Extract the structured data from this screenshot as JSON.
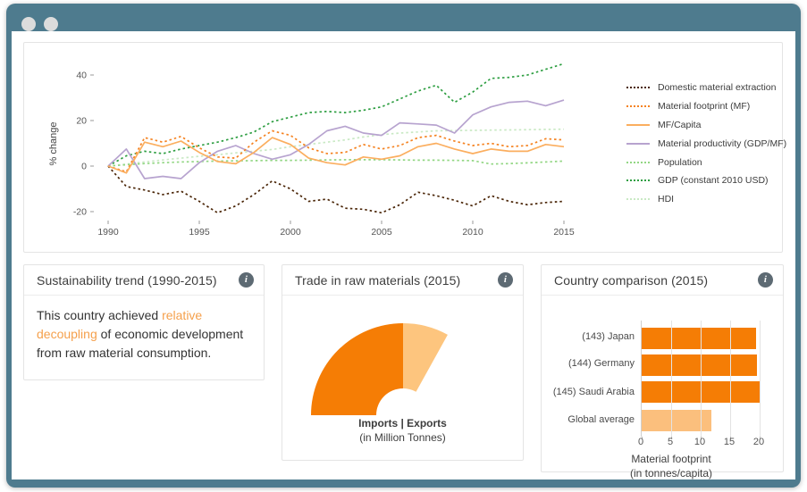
{
  "window": {
    "frame_color": "#4e7b8e"
  },
  "icons": {
    "info": "i"
  },
  "panels": {
    "trend": {
      "title": "Sustainability trend (1990-2015)",
      "text_before": "This country achieved ",
      "highlight": "relative decoupling",
      "text_after": " of economic development from raw material consumption."
    },
    "trade": {
      "title": "Trade in raw materials (2015)",
      "caption_line1": "Imports | Exports",
      "caption_line2": "(in Million Tonnes)"
    },
    "comparison": {
      "title": "Country comparison (2015)"
    }
  },
  "chart_data": [
    {
      "type": "line",
      "ylabel": "% change",
      "y_ticks": [
        40,
        20,
        0,
        -20
      ],
      "ylim": [
        -25,
        47
      ],
      "x_ticks": [
        1990,
        1995,
        2000,
        2005,
        2010,
        2015
      ],
      "years": [
        1990,
        1991,
        1992,
        1993,
        1994,
        1995,
        1996,
        1997,
        1998,
        1999,
        2000,
        2001,
        2002,
        2003,
        2004,
        2005,
        2006,
        2007,
        2008,
        2009,
        2010,
        2011,
        2012,
        2013,
        2014,
        2015
      ],
      "legend_position": "right",
      "grid": false,
      "series": [
        {
          "name": "Domestic material extraction",
          "color": "#4a2507",
          "dash": true,
          "values": [
            0,
            -9,
            -10.5,
            -12.5,
            -11,
            -15.5,
            -20.5,
            -17.5,
            -12.5,
            -6.5,
            -10,
            -15.5,
            -14.5,
            -18.5,
            -19,
            -20.5,
            -17,
            -11.5,
            -13,
            -15,
            -17.5,
            -13,
            -15.5,
            -17,
            -16,
            -15.5
          ]
        },
        {
          "name": "Material footprint (MF)",
          "color": "#f58220",
          "dash": true,
          "values": [
            0,
            -2.5,
            12.5,
            10.5,
            13,
            8,
            4,
            3.5,
            10.5,
            15.5,
            13.5,
            8,
            5.5,
            6,
            9.5,
            7.5,
            9,
            12.5,
            13.5,
            11,
            9,
            10,
            8.5,
            9,
            12,
            11.5
          ]
        },
        {
          "name": "MF/Capita",
          "color": "#fbae5f",
          "dash": false,
          "values": [
            0,
            -3,
            10.5,
            8.5,
            11,
            6,
            2,
            1,
            6,
            12.5,
            9.5,
            3.5,
            1.5,
            0.5,
            4,
            3,
            4.5,
            8.5,
            10,
            7.5,
            5.5,
            7.5,
            6.5,
            6.5,
            9.5,
            8.5
          ]
        },
        {
          "name": "Material productivity (GDP/MF)",
          "color": "#b7a3cf",
          "dash": false,
          "values": [
            0,
            7.5,
            -5.5,
            -4.5,
            -5.5,
            1.5,
            6.5,
            9,
            5.5,
            3,
            5,
            9.5,
            15.5,
            17.5,
            14.5,
            13.5,
            19,
            18.5,
            18,
            14.5,
            22.5,
            26,
            28,
            28.5,
            26.5,
            29
          ]
        },
        {
          "name": "Population",
          "color": "#92d683",
          "dash": true,
          "values": [
            0,
            0.6,
            1.1,
            1.5,
            1.8,
            2,
            2.2,
            2.3,
            2.4,
            2.5,
            2.5,
            2.6,
            2.7,
            2.8,
            2.8,
            2.8,
            2.7,
            2.6,
            2.6,
            2.5,
            2.4,
            0.9,
            1.1,
            1.4,
            1.8,
            2.2
          ]
        },
        {
          "name": "GDP (constant 2010 USD)",
          "color": "#2d9e41",
          "dash": true,
          "values": [
            0,
            4.5,
            6.5,
            5.5,
            7.5,
            9,
            10.5,
            12.5,
            15,
            19.5,
            21.5,
            23.5,
            24,
            23.5,
            24.5,
            26,
            29.5,
            33,
            35.5,
            28,
            32.5,
            38.5,
            39,
            40,
            42.5,
            45
          ]
        },
        {
          "name": "HDI",
          "color": "#c9e9c4",
          "dash": true,
          "values": [
            0,
            0.9,
            1.8,
            2.7,
            3.5,
            4.3,
            5,
            5.8,
            6.5,
            7.3,
            8.5,
            9.5,
            10.5,
            11.5,
            12.8,
            13.8,
            14.5,
            15,
            15.5,
            15.6,
            15.7,
            15.8,
            15.9,
            16,
            16.1,
            16.2
          ]
        }
      ]
    },
    {
      "type": "donut-fan",
      "caption": "Imports | Exports (in Million Tonnes)",
      "inner_radius": 30,
      "outer_radius": 103,
      "center": [
        135,
        134
      ],
      "segments": [
        {
          "label": "Imports",
          "color": "#f57d05",
          "start_angle": 180,
          "end_angle": 90,
          "share": 0.76
        },
        {
          "label": "Exports",
          "color": "#fdc57e",
          "start_angle": 90,
          "end_angle": 61,
          "share": 0.24
        }
      ]
    },
    {
      "type": "bar",
      "orientation": "horizontal",
      "categories": [
        "(143) Japan",
        "(144) Germany",
        "(145) Saudi Arabia",
        "Global average"
      ],
      "values": [
        19.4,
        19.6,
        20.2,
        11.8
      ],
      "bar_colors": [
        "#f57d05",
        "#f57d05",
        "#f57d05",
        "#fbbf7d"
      ],
      "x_ticks": [
        0,
        5,
        10,
        15,
        20
      ],
      "xlim": [
        0,
        21
      ],
      "xlabel_line1": "Material footprint",
      "xlabel_line2": "(in tonnes/capita)"
    }
  ]
}
